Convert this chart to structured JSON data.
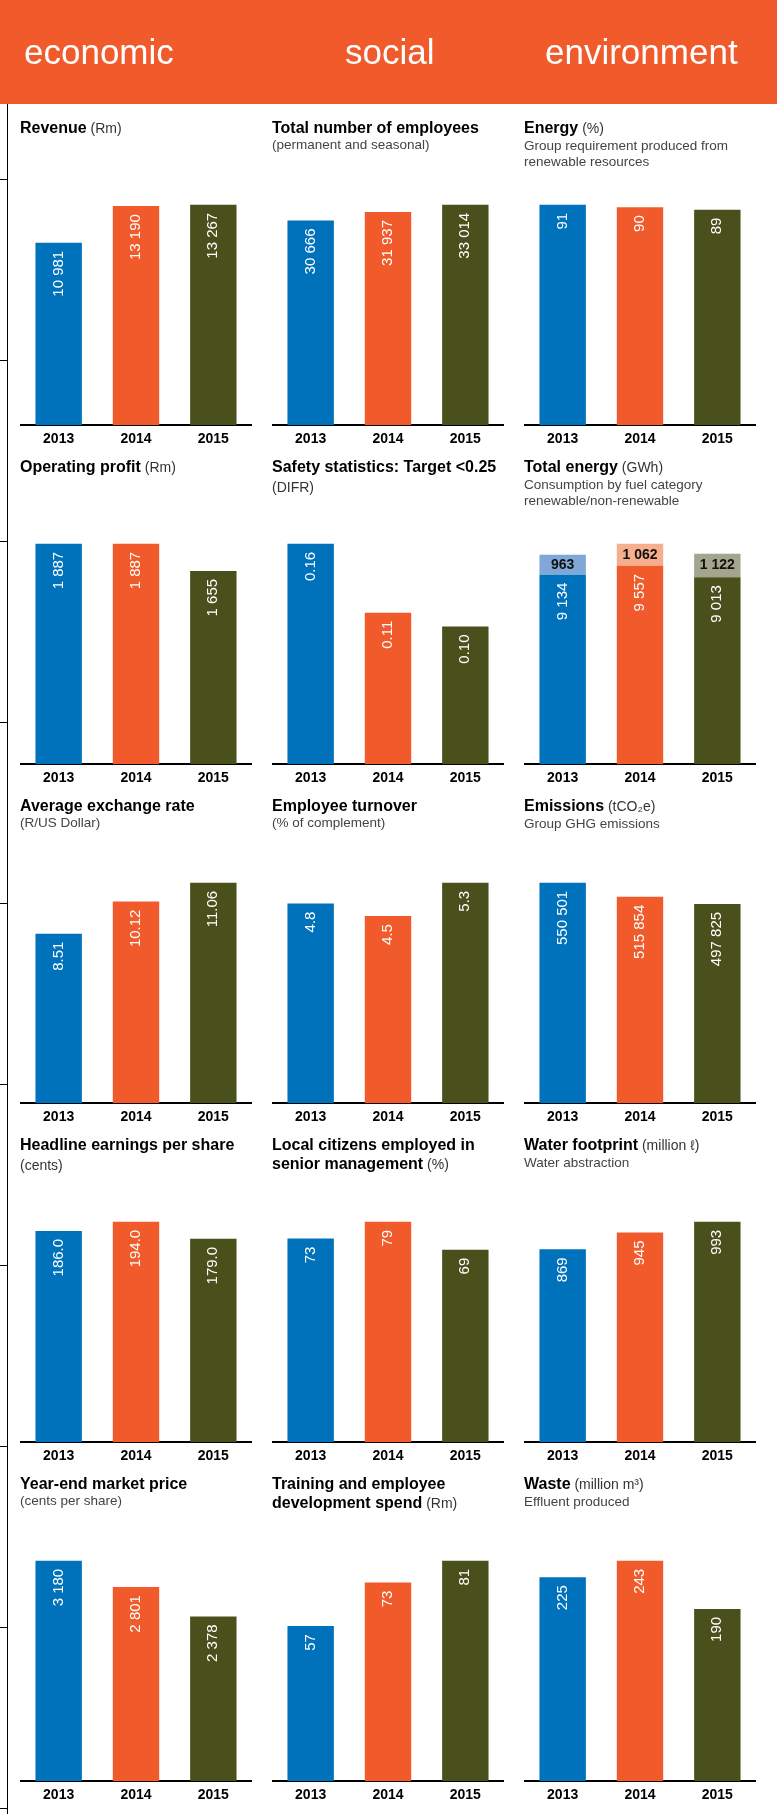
{
  "chart_data": [
    {
      "type": "other",
      "annotations": [
        "economic",
        "social",
        "environment"
      ]
    },
    {
      "type": "bar",
      "title": "Revenue (Rm)",
      "categories": [
        "2013",
        "2014",
        "2015"
      ],
      "values": [
        10981,
        13190,
        13267
      ],
      "colors": [
        "#0072bc",
        "#f15a2b",
        "#4a501b"
      ],
      "value_labels": [
        "10 981",
        "13 190",
        "13 267"
      ]
    },
    {
      "type": "bar",
      "title": "Total number of employees",
      "subtitle": "(permanent and seasonal)",
      "categories": [
        "2013",
        "2014",
        "2015"
      ],
      "values": [
        30666,
        31937,
        33014
      ],
      "colors": [
        "#0072bc",
        "#f15a2b",
        "#4a501b"
      ],
      "value_labels": [
        "30 666",
        "31 937",
        "33 014"
      ]
    },
    {
      "type": "bar",
      "title": "Energy (%)",
      "subtitle": "Group requirement produced from renewable resources",
      "categories": [
        "2013",
        "2014",
        "2015"
      ],
      "values": [
        91,
        90,
        89
      ],
      "colors": [
        "#0072bc",
        "#f15a2b",
        "#4a501b"
      ],
      "value_labels": [
        "91",
        "90",
        "89"
      ]
    },
    {
      "type": "bar",
      "title": "Operating profit (Rm)",
      "categories": [
        "2013",
        "2014",
        "2015"
      ],
      "values": [
        1887,
        1887,
        1655
      ],
      "colors": [
        "#0072bc",
        "#f15a2b",
        "#4a501b"
      ],
      "value_labels": [
        "1 887",
        "1 887",
        "1 655"
      ]
    },
    {
      "type": "bar",
      "title": "Safety statistics: Target <0.25 (DIFR)",
      "categories": [
        "2013",
        "2014",
        "2015"
      ],
      "values": [
        0.16,
        0.11,
        0.1
      ],
      "colors": [
        "#0072bc",
        "#f15a2b",
        "#4a501b"
      ],
      "value_labels": [
        "0.16",
        "0.11",
        "0.10"
      ]
    },
    {
      "type": "bar",
      "title": "Total energy (GWh)",
      "subtitle": "Consumption by fuel category renewable/non-renewable",
      "categories": [
        "2013",
        "2014",
        "2015"
      ],
      "stacked": true,
      "series": [
        {
          "colors": [
            "#0072bc",
            "#f15a2b",
            "#4a501b"
          ],
          "values": [
            9134,
            9557,
            9013
          ],
          "value_labels": [
            "9 134",
            "9 557",
            "9 013"
          ]
        },
        {
          "colors": [
            "#7fa8d8",
            "#f6ae8c",
            "#a3a58c"
          ],
          "values": [
            963,
            1062,
            1122
          ],
          "value_labels": [
            "963",
            "1 062",
            "1 122"
          ]
        }
      ]
    },
    {
      "type": "bar",
      "title": "Average exchange rate",
      "subtitle": "(R/US Dollar)",
      "categories": [
        "2013",
        "2014",
        "2015"
      ],
      "values": [
        8.51,
        10.12,
        11.06
      ],
      "colors": [
        "#0072bc",
        "#f15a2b",
        "#4a501b"
      ],
      "value_labels": [
        "8.51",
        "10.12",
        "11.06"
      ]
    },
    {
      "type": "bar",
      "title": "Employee turnover",
      "subtitle": "(% of complement)",
      "categories": [
        "2013",
        "2014",
        "2015"
      ],
      "values": [
        4.8,
        4.5,
        5.3
      ],
      "colors": [
        "#0072bc",
        "#f15a2b",
        "#4a501b"
      ],
      "value_labels": [
        "4.8",
        "4.5",
        "5.3"
      ]
    },
    {
      "type": "bar",
      "title": "Emissions (tCO₂e)",
      "subtitle": "Group GHG emissions",
      "categories": [
        "2013",
        "2014",
        "2015"
      ],
      "values": [
        550501,
        515854,
        497825
      ],
      "colors": [
        "#0072bc",
        "#f15a2b",
        "#4a501b"
      ],
      "value_labels": [
        "550 501",
        "515 854",
        "497 825"
      ]
    },
    {
      "type": "bar",
      "title": "Headline earnings per share (cents)",
      "categories": [
        "2013",
        "2014",
        "2015"
      ],
      "values": [
        186.0,
        194.0,
        179.0
      ],
      "colors": [
        "#0072bc",
        "#f15a2b",
        "#4a501b"
      ],
      "value_labels": [
        "186.0",
        "194.0",
        "179.0"
      ]
    },
    {
      "type": "bar",
      "title": "Local citizens employed in senior management (%)",
      "categories": [
        "2013",
        "2014",
        "2015"
      ],
      "values": [
        73,
        79,
        69
      ],
      "colors": [
        "#0072bc",
        "#f15a2b",
        "#4a501b"
      ],
      "value_labels": [
        "73",
        "79",
        "69"
      ]
    },
    {
      "type": "bar",
      "title": "Water footprint (million ℓ)",
      "subtitle": "Water abstraction",
      "categories": [
        "2013",
        "2014",
        "2015"
      ],
      "values": [
        869,
        945,
        993
      ],
      "colors": [
        "#0072bc",
        "#f15a2b",
        "#4a501b"
      ],
      "value_labels": [
        "869",
        "945",
        "993"
      ]
    },
    {
      "type": "bar",
      "title": "Year-end market price",
      "subtitle": "(cents per share)",
      "categories": [
        "2013",
        "2014",
        "2015"
      ],
      "values": [
        3180,
        2801,
        2378
      ],
      "colors": [
        "#0072bc",
        "#f15a2b",
        "#4a501b"
      ],
      "value_labels": [
        "3 180",
        "2 801",
        "2 378"
      ]
    },
    {
      "type": "bar",
      "title": "Training and employee development spend (Rm)",
      "categories": [
        "2013",
        "2014",
        "2015"
      ],
      "values": [
        57,
        73,
        81
      ],
      "colors": [
        "#0072bc",
        "#f15a2b",
        "#4a501b"
      ],
      "value_labels": [
        "57",
        "73",
        "81"
      ]
    },
    {
      "type": "bar",
      "title": "Waste (million m³)",
      "subtitle": "Effluent produced",
      "categories": [
        "2013",
        "2014",
        "2015"
      ],
      "values": [
        225,
        243,
        190
      ],
      "colors": [
        "#0072bc",
        "#f15a2b",
        "#4a501b"
      ],
      "value_labels": [
        "225",
        "243",
        "190"
      ]
    }
  ]
}
